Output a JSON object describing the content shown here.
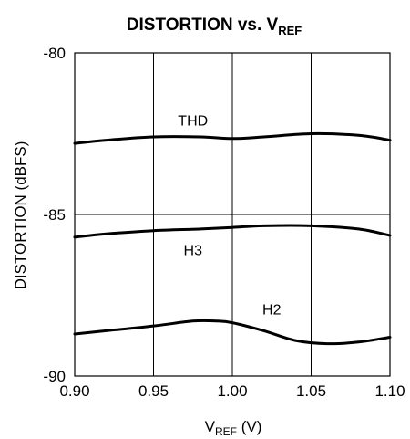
{
  "chart_data": {
    "type": "line",
    "title_main": "DISTORTION vs. V",
    "title_sub": "REF",
    "xlabel_main": "V",
    "xlabel_sub": "REF",
    "xlabel_unit": " (V)",
    "ylabel": "DISTORTION (dBFS)",
    "xlim": [
      0.9,
      1.1
    ],
    "ylim": [
      -90,
      -80
    ],
    "x_ticks": [
      "0.90",
      "0.95",
      "1.00",
      "1.05",
      "1.10"
    ],
    "y_ticks": [
      "-80",
      "-85",
      "-90"
    ],
    "grid": true,
    "series": [
      {
        "name": "THD",
        "x": [
          0.9,
          0.92,
          0.95,
          0.98,
          1.0,
          1.02,
          1.05,
          1.08,
          1.1
        ],
        "y": [
          -82.8,
          -82.7,
          -82.6,
          -82.6,
          -82.65,
          -82.6,
          -82.5,
          -82.55,
          -82.7
        ]
      },
      {
        "name": "H3",
        "x": [
          0.9,
          0.92,
          0.95,
          0.98,
          1.0,
          1.02,
          1.05,
          1.08,
          1.1
        ],
        "y": [
          -85.7,
          -85.6,
          -85.5,
          -85.45,
          -85.4,
          -85.35,
          -85.35,
          -85.45,
          -85.65
        ]
      },
      {
        "name": "H2",
        "x": [
          0.9,
          0.92,
          0.95,
          0.975,
          0.99,
          1.0,
          1.02,
          1.04,
          1.06,
          1.08,
          1.1
        ],
        "y": [
          -88.7,
          -88.6,
          -88.45,
          -88.3,
          -88.3,
          -88.35,
          -88.6,
          -88.9,
          -89.0,
          -88.95,
          -88.8
        ]
      }
    ]
  }
}
